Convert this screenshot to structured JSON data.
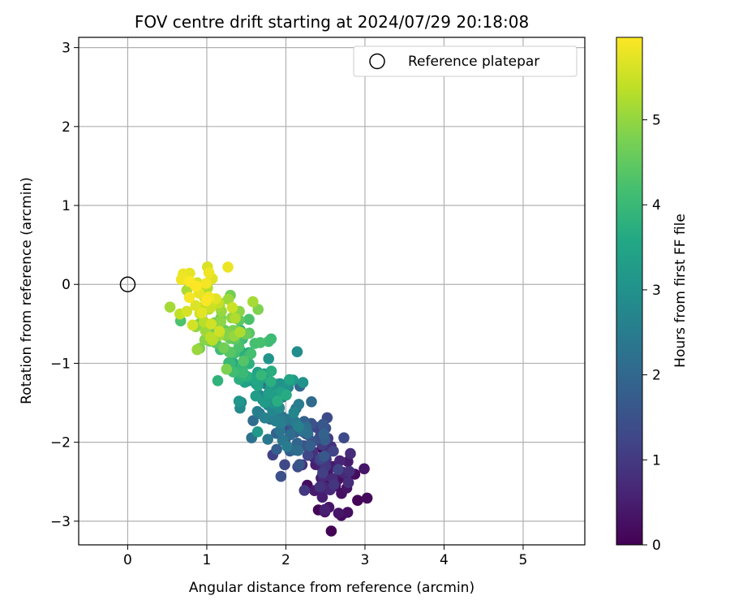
{
  "chart_data": {
    "type": "scatter",
    "title": "FOV centre drift starting at 2024/07/29 20:18:08",
    "xlabel": "Angular distance from reference (arcmin)",
    "ylabel": "Rotation from reference (arcmin)",
    "xlim": [
      -0.62,
      5.78
    ],
    "ylim": [
      -3.3,
      3.13
    ],
    "x_ticks": [
      0,
      1,
      2,
      3,
      4,
      5
    ],
    "y_ticks": [
      -3,
      -2,
      -1,
      0,
      1,
      2,
      3
    ],
    "grid": true,
    "legend": {
      "position": "top-right",
      "entries": [
        {
          "label": "Reference platepar",
          "marker": "open-circle"
        }
      ]
    },
    "reference_point": {
      "x": 0,
      "y": 0
    },
    "colorbar": {
      "label": "Hours from first FF file",
      "colormap": "viridis",
      "range": [
        0,
        5.97
      ],
      "ticks": [
        0,
        1,
        2,
        3,
        4,
        5
      ]
    },
    "n_points": 300,
    "drift_model": {
      "x_start": 2.75,
      "x_end": 0.8,
      "y_start": -2.72,
      "y_end": -0.05,
      "x_noise": 0.19,
      "y_noise": 0.2,
      "hours_max": 5.97
    }
  }
}
